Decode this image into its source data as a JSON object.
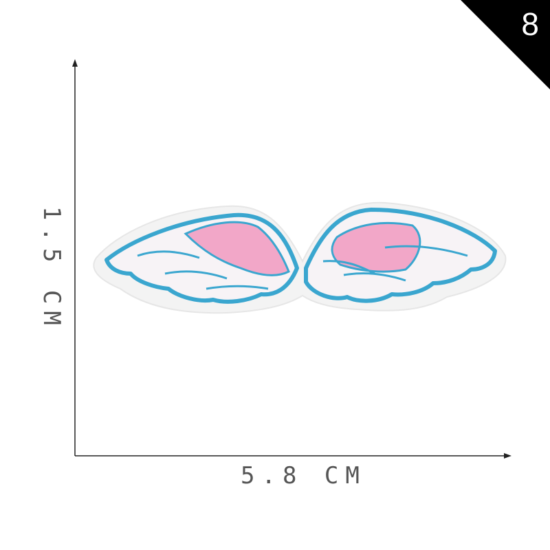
{
  "badge": {
    "number": "8"
  },
  "dimensions": {
    "height_label": "1.5 CM",
    "width_label": "5.8 CM"
  },
  "product": {
    "name": "angel-wings-embroidered-patch",
    "colors": {
      "outline": "#3aa6cf",
      "fill_pink": "#f2a7c8",
      "fill_white": "#f7f3f6",
      "felt": "#f4f4f4"
    }
  }
}
